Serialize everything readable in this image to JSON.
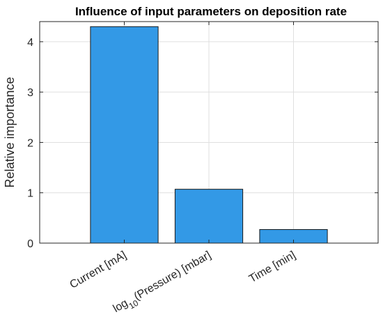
{
  "chart_data": {
    "type": "bar",
    "title": "Influence of input parameters on deposition rate",
    "xlabel": "",
    "ylabel": "Relative importance",
    "categories": [
      {
        "text": "Current [mA]",
        "parts": [
          {
            "t": "Current [mA]"
          }
        ]
      },
      {
        "text": "log10(Pressure) [mbar]",
        "parts": [
          {
            "t": "log"
          },
          {
            "t": "10",
            "sub": true
          },
          {
            "t": "(Pressure) [mbar]"
          }
        ]
      },
      {
        "text": "Time [min]",
        "parts": [
          {
            "t": "Time [min]"
          }
        ]
      }
    ],
    "values": [
      4.3,
      1.07,
      0.27
    ],
    "ylim": [
      0,
      4.4
    ],
    "xlim": [
      0,
      4
    ],
    "yticks": [
      0,
      1,
      2,
      3,
      4
    ],
    "bar_color": "#3399e6",
    "grid": true,
    "legend": "none"
  }
}
